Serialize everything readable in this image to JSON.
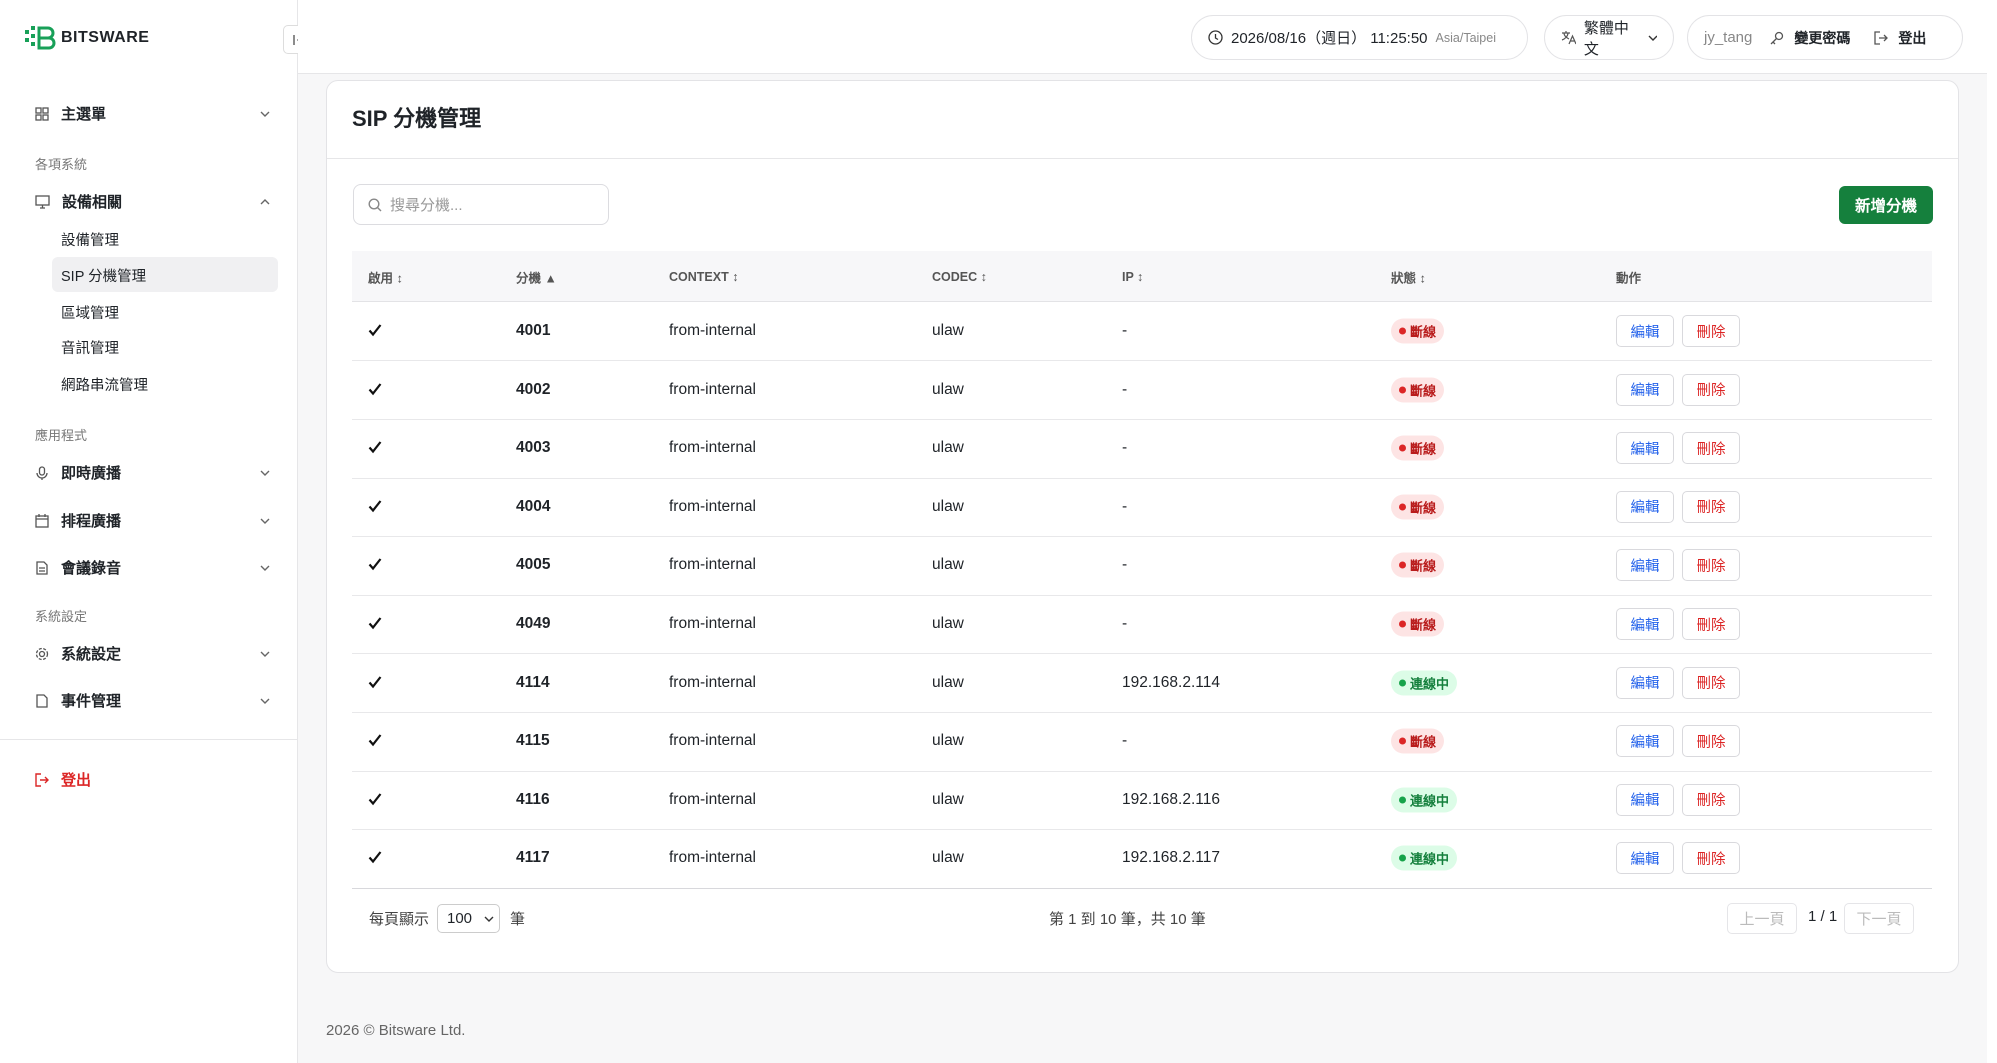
{
  "header": {
    "logo": "BITSWARE",
    "datetime": "2026/08/16（週日） 11:25:50",
    "timezone": "Asia/Taipei",
    "language": "繁體中文",
    "user": "jy_tang",
    "change_password": "變更密碼",
    "logout": "登出"
  },
  "sidebar": {
    "main_menu": "主選單",
    "section1": "各項系統",
    "devices": "設備相關",
    "device_items": [
      "設備管理",
      "SIP 分機管理",
      "區域管理",
      "音訊管理",
      "網路串流管理"
    ],
    "section2": "應用程式",
    "live": "即時廣播",
    "schedule": "排程廣播",
    "meeting": "會議錄音",
    "section3": "系統設定",
    "settings": "系統設定",
    "events": "事件管理",
    "logout": "登出"
  },
  "card": {
    "title": "SIP 分機管理",
    "search_placeholder": "搜尋分機...",
    "add_button": "新增分機"
  },
  "table": {
    "columns": [
      "啟用 ↕",
      "分機 ▲",
      "CONTEXT ↕",
      "CODEC ↕",
      "IP ↕",
      "狀態 ↕",
      "動作"
    ],
    "rows": [
      {
        "extension": "4001",
        "context": "from-internal",
        "codec": "ulaw",
        "ip": "-",
        "status": "斷線",
        "status_color": "red"
      },
      {
        "extension": "4002",
        "context": "from-internal",
        "codec": "ulaw",
        "ip": "-",
        "status": "斷線",
        "status_color": "red"
      },
      {
        "extension": "4003",
        "context": "from-internal",
        "codec": "ulaw",
        "ip": "-",
        "status": "斷線",
        "status_color": "red"
      },
      {
        "extension": "4004",
        "context": "from-internal",
        "codec": "ulaw",
        "ip": "-",
        "status": "斷線",
        "status_color": "red"
      },
      {
        "extension": "4005",
        "context": "from-internal",
        "codec": "ulaw",
        "ip": "-",
        "status": "斷線",
        "status_color": "red"
      },
      {
        "extension": "4049",
        "context": "from-internal",
        "codec": "ulaw",
        "ip": "-",
        "status": "斷線",
        "status_color": "red"
      },
      {
        "extension": "4114",
        "context": "from-internal",
        "codec": "ulaw",
        "ip": "192.168.2.114",
        "status": "連線中",
        "status_color": "green"
      },
      {
        "extension": "4115",
        "context": "from-internal",
        "codec": "ulaw",
        "ip": "-",
        "status": "斷線",
        "status_color": "red"
      },
      {
        "extension": "4116",
        "context": "from-internal",
        "codec": "ulaw",
        "ip": "192.168.2.116",
        "status": "連線中",
        "status_color": "green"
      },
      {
        "extension": "4117",
        "context": "from-internal",
        "codec": "ulaw",
        "ip": "192.168.2.117",
        "status": "連線中",
        "status_color": "green"
      }
    ],
    "actions": {
      "edit": "編輯",
      "delete": "刪除"
    }
  },
  "pagination": {
    "per_page_label": "每頁顯示",
    "per_page": "100",
    "unit": "筆",
    "summary": "第 1 到 10 筆，共 10 筆",
    "prev": "上一頁",
    "page": "1 / 1",
    "next": "下一頁"
  },
  "footer": "2026 © Bitsware Ltd."
}
